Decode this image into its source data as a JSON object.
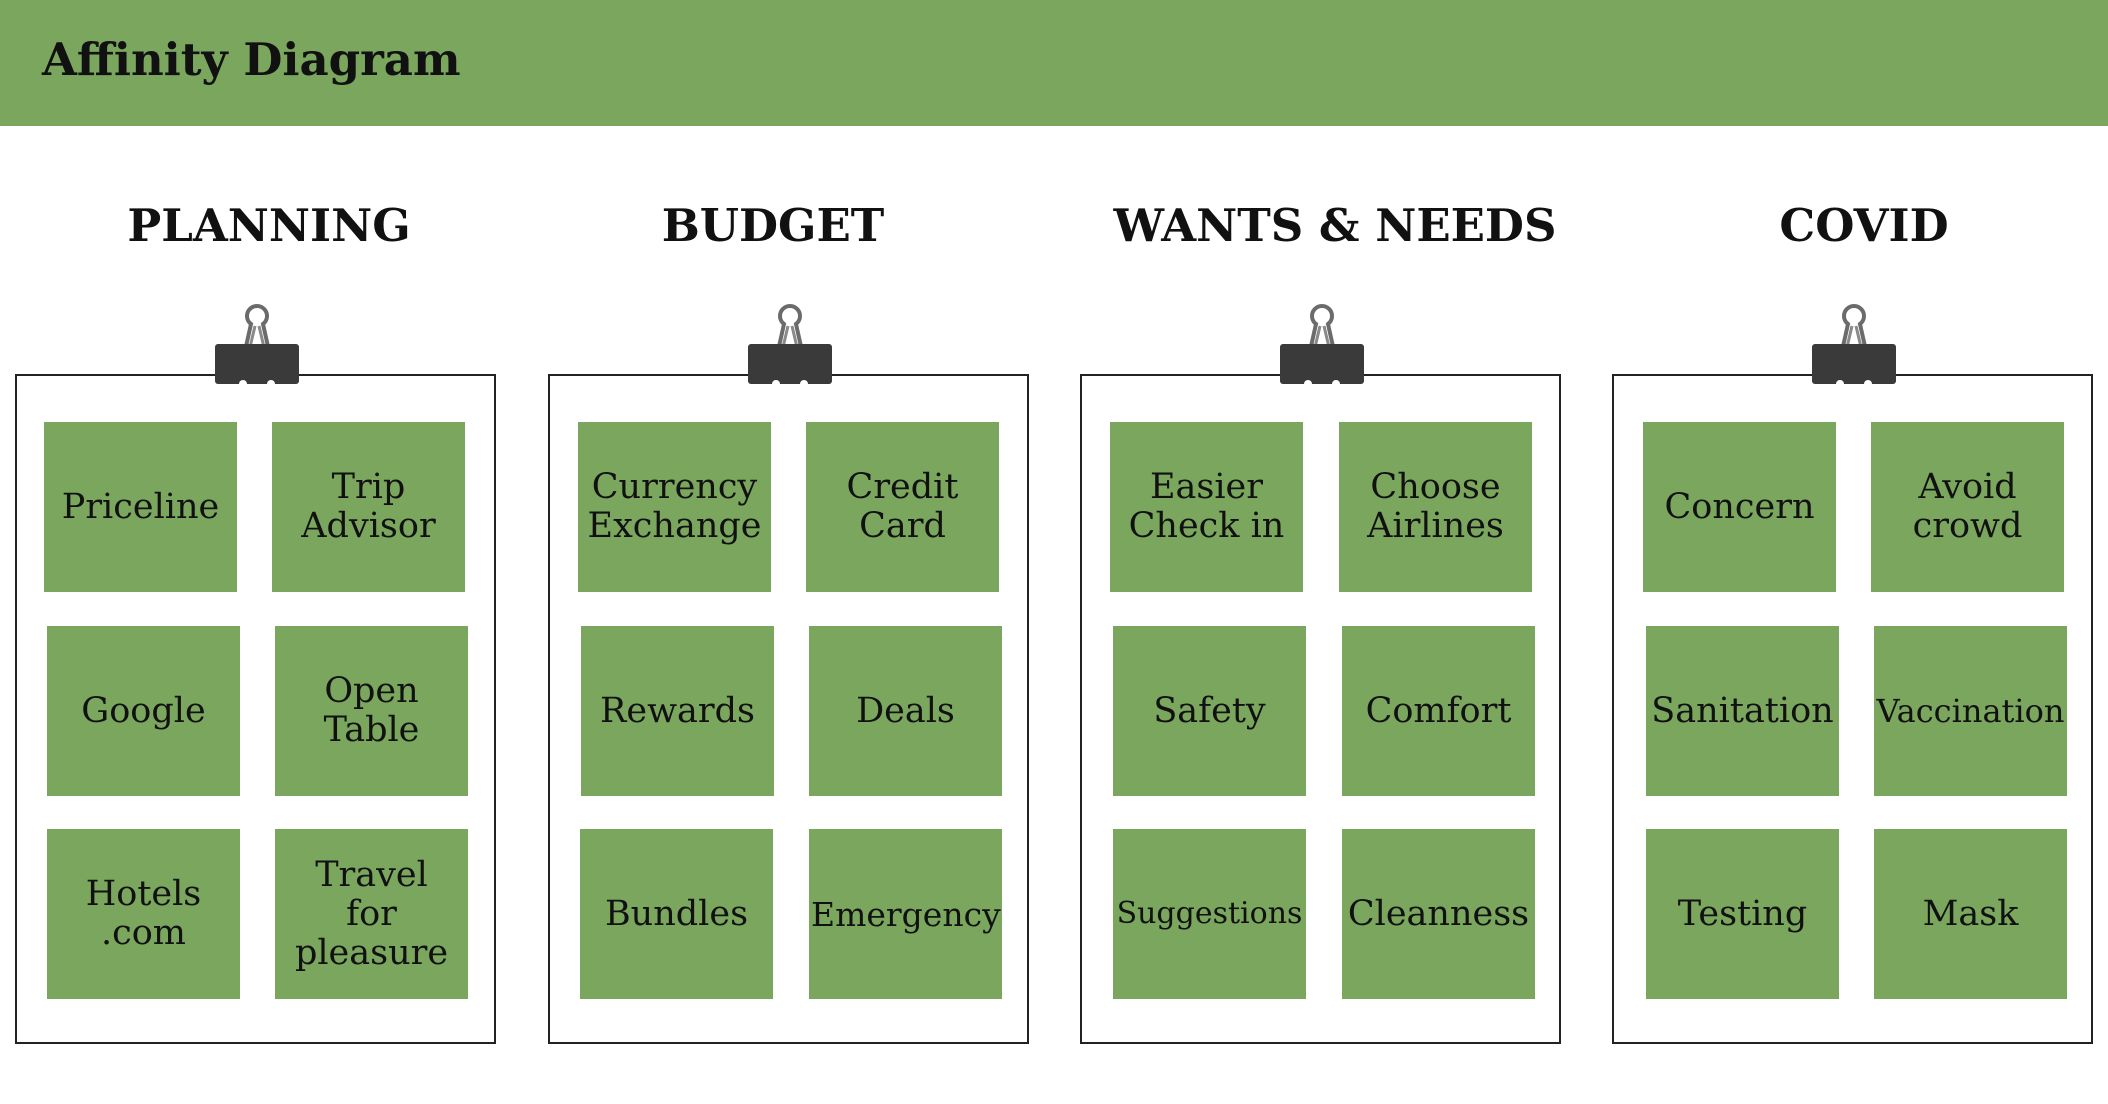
{
  "header": {
    "title": "Affinity Diagram"
  },
  "colors": {
    "header_bg": "#7aa65d",
    "note_bg": "#7aa65d",
    "board_border": "#222222",
    "clip": "#3a3a3a"
  },
  "columns": [
    {
      "title": "PLANNING",
      "notes": [
        "Priceline",
        "Trip\nAdvisor",
        "Google",
        "Open\nTable",
        "Hotels\n.com",
        "Travel\nfor\npleasure"
      ]
    },
    {
      "title": "BUDGET",
      "notes": [
        "Currency\nExchange",
        "Credit\nCard",
        "Rewards",
        "Deals",
        "Bundles",
        "Emergency"
      ]
    },
    {
      "title": "WANTS & NEEDS",
      "notes": [
        "Easier\nCheck in",
        "Choose\nAirlines",
        "Safety",
        "Comfort",
        "Suggestions",
        "Cleanness"
      ]
    },
    {
      "title": "COVID",
      "notes": [
        "Concern",
        "Avoid\ncrowd",
        "Sanitation",
        "Vaccination",
        "Testing",
        "Mask"
      ]
    }
  ]
}
